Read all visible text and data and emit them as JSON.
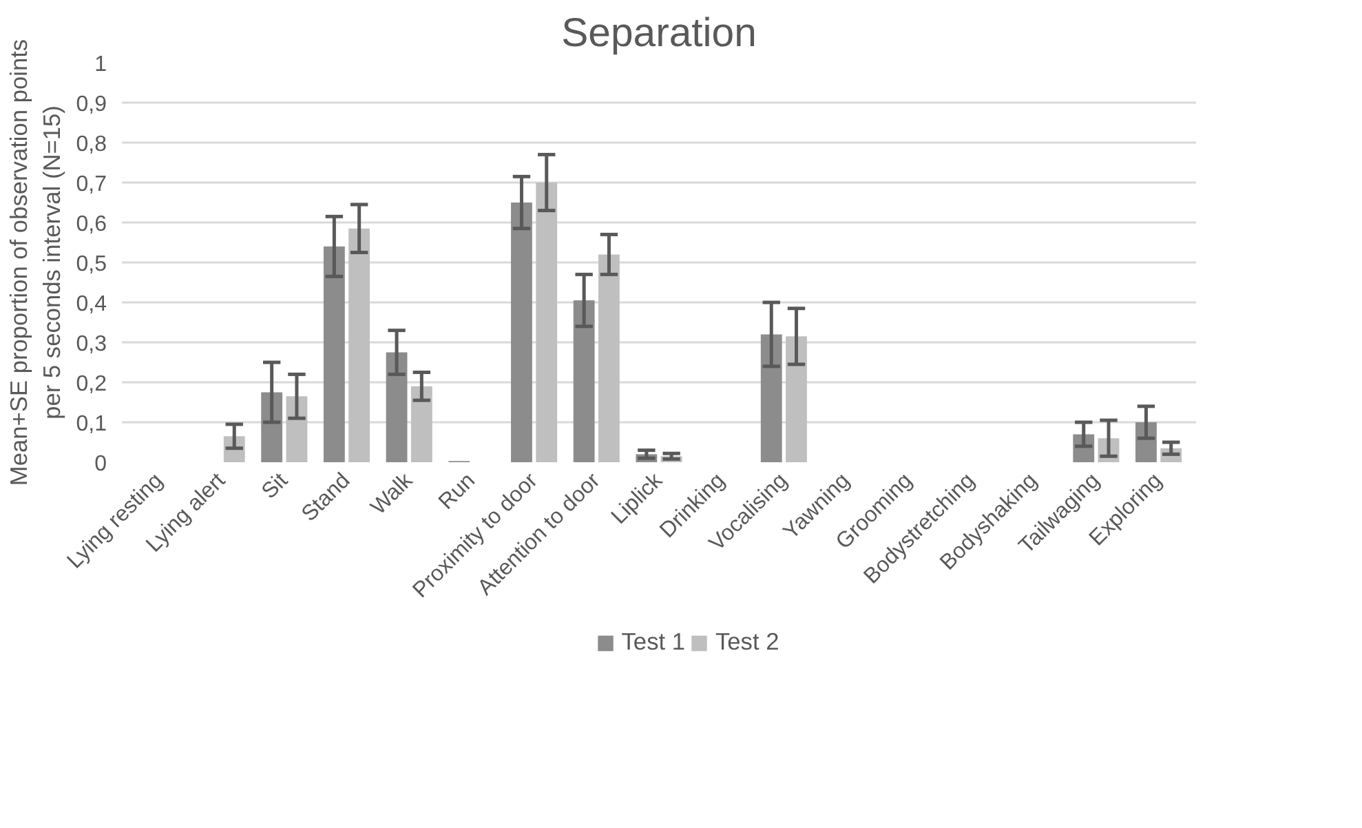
{
  "chart_data": {
    "type": "bar",
    "title": "Separation",
    "ylabel": "Mean+SE proportion of observation points per 5 seconds interval (N=15)",
    "categories": [
      "Lying resting",
      "Lying alert",
      "Sit",
      "Stand",
      "Walk",
      "Run",
      "Proximity to door",
      "Attention to door",
      "Liplick",
      "Drinking",
      "Vocalising",
      "Yawning",
      "Grooming",
      "Bodystretching",
      "Bodyshaking",
      "Tailwaging",
      "Exploring"
    ],
    "series": [
      {
        "name": "Test 1",
        "color": "#8c8c8c",
        "values": [
          0,
          0,
          0.175,
          0.54,
          0.275,
          0.003,
          0.65,
          0.405,
          0.02,
          0,
          0.32,
          0,
          0,
          0,
          0,
          0.07,
          0.1
        ],
        "errors": [
          null,
          null,
          0.075,
          0.075,
          0.055,
          null,
          0.065,
          0.065,
          0.01,
          null,
          0.08,
          null,
          null,
          null,
          null,
          0.03,
          0.04
        ]
      },
      {
        "name": "Test 2",
        "color": "#bfbfbf",
        "values": [
          0,
          0.065,
          0.165,
          0.585,
          0.19,
          0,
          0.7,
          0.52,
          0.015,
          0,
          0.315,
          0,
          0,
          0,
          0,
          0.06,
          0.035
        ],
        "errors": [
          null,
          0.03,
          0.055,
          0.06,
          0.035,
          null,
          0.07,
          0.05,
          0.007,
          null,
          0.07,
          null,
          null,
          null,
          null,
          0.045,
          0.015
        ]
      }
    ],
    "ylim": [
      0,
      1
    ],
    "yticks": [
      0,
      {
        "value": 0.1,
        "label": "0,1"
      },
      {
        "value": 0.2,
        "label": "0,2"
      },
      {
        "value": 0.3,
        "label": "0,3"
      },
      {
        "value": 0.4,
        "label": "0,4"
      },
      {
        "value": 0.5,
        "label": "0,5"
      },
      {
        "value": 0.6,
        "label": "0,6"
      },
      {
        "value": 0.7,
        "label": "0,7"
      },
      {
        "value": 0.8,
        "label": "0,8"
      },
      {
        "value": 0.9,
        "label": "0,9"
      },
      1
    ],
    "grid": "y",
    "legend": "bottom"
  }
}
